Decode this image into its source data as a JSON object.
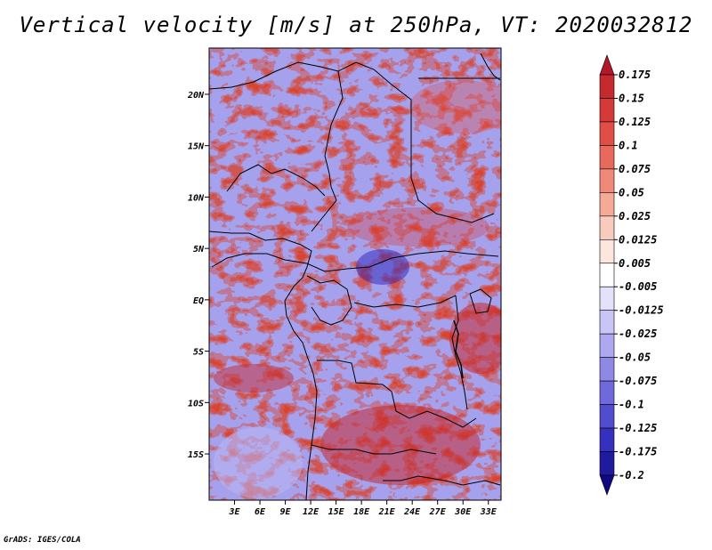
{
  "title": "Vertical velocity [m/s] at 250hPa, VT: 2020032812",
  "credit": "GrADS: IGES/COLA",
  "map": {
    "lat_labels": [
      "20N",
      "15N",
      "10N",
      "5N",
      "EQ",
      "5S",
      "10S",
      "15S"
    ],
    "lat_values": [
      20,
      15,
      10,
      5,
      0,
      -5,
      -10,
      -15
    ],
    "lon_labels": [
      "3E",
      "6E",
      "9E",
      "12E",
      "15E",
      "18E",
      "21E",
      "24E",
      "27E",
      "30E",
      "33E"
    ],
    "lon_values": [
      3,
      6,
      9,
      12,
      15,
      18,
      21,
      24,
      27,
      30,
      33
    ],
    "lon_range": [
      0,
      34.5
    ],
    "lat_range": [
      -19.5,
      24.5
    ]
  },
  "colorbar": {
    "labels": [
      "0.175",
      "0.15",
      "0.125",
      "0.1",
      "0.075",
      "0.05",
      "0.025",
      "0.0125",
      "0.005",
      "-0.005",
      "-0.0125",
      "-0.025",
      "-0.05",
      "-0.075",
      "-0.1",
      "-0.125",
      "-0.175",
      "-0.2"
    ],
    "colors": [
      "#b2182b",
      "#c52a2f",
      "#d63a38",
      "#e04e46",
      "#e86a5c",
      "#ef8a78",
      "#f5aa98",
      "#f9cbbd",
      "#fde6dd",
      "#ffffff",
      "#e3e1fb",
      "#c9c5f6",
      "#ada8ef",
      "#8f89e6",
      "#7069dc",
      "#524ccf",
      "#3530bd",
      "#1f1a9e",
      "#100a80"
    ]
  }
}
